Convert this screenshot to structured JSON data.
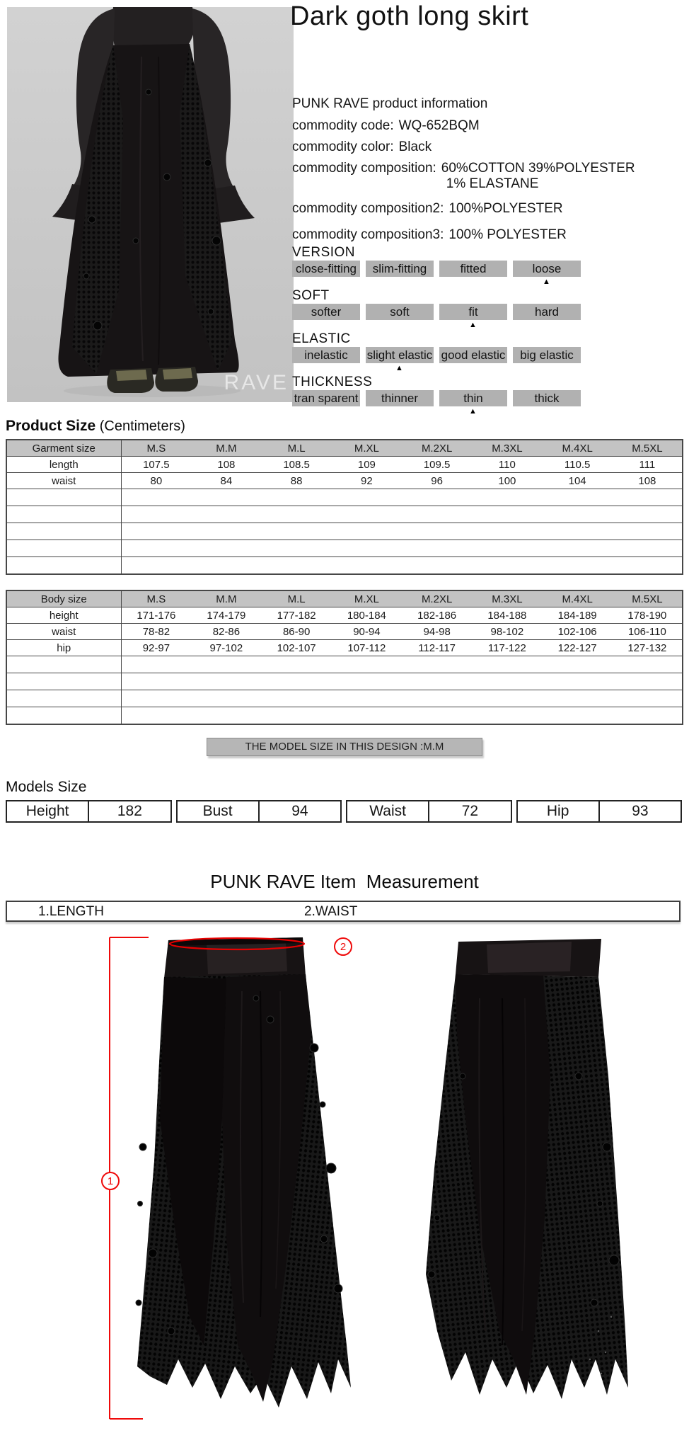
{
  "title": "Dark goth long skirt",
  "photo": {
    "watermark": "RAVE"
  },
  "product_info": {
    "heading": "PUNK RAVE product information",
    "rows": [
      {
        "label": "commodity code:",
        "value": "WQ-652BQM"
      },
      {
        "label": "commodity color:",
        "value": "Black"
      },
      {
        "label": "commodity composition:",
        "value": "60%COTTON  39%POLYESTER",
        "value2": "1% ELASTANE"
      },
      {
        "label": "commodity composition2:",
        "value": "100%POLYESTER"
      },
      {
        "label": "commodity composition3:",
        "value": "100% POLYESTER"
      }
    ]
  },
  "selected_marker": "▲",
  "attributes": [
    {
      "name": "VERSION",
      "options": [
        "close-fitting",
        "slim-fitting",
        "fitted",
        "loose"
      ],
      "selected_index": 3
    },
    {
      "name": "SOFT",
      "options": [
        "softer",
        "soft",
        "fit",
        "hard"
      ],
      "selected_index": 2
    },
    {
      "name": "ELASTIC",
      "options": [
        "inelastic",
        "slight elastic",
        "good elastic",
        "big elastic"
      ],
      "selected_index": 1
    },
    {
      "name": "THICKNESS",
      "options": [
        "tran sparent",
        "thinner",
        "thin",
        "thick"
      ],
      "selected_index": 2
    }
  ],
  "product_size": {
    "heading_bold": "Product Size",
    "heading_note": "(Centimeters)",
    "columns": [
      "Garment size",
      "M.S",
      "M.M",
      "M.L",
      "M.XL",
      "M.2XL",
      "M.3XL",
      "M.4XL",
      "M.5XL"
    ],
    "rows": [
      {
        "label": "length",
        "values": [
          "107.5",
          "108",
          "108.5",
          "109",
          "109.5",
          "110",
          "110.5",
          "111"
        ]
      },
      {
        "label": "waist",
        "values": [
          "80",
          "84",
          "88",
          "92",
          "96",
          "100",
          "104",
          "108"
        ]
      }
    ],
    "empty_rows": 5
  },
  "body_size": {
    "columns": [
      "Body size",
      "M.S",
      "M.M",
      "M.L",
      "M.XL",
      "M.2XL",
      "M.3XL",
      "M.4XL",
      "M.5XL"
    ],
    "rows": [
      {
        "label": "height",
        "values": [
          "171-176",
          "174-179",
          "177-182",
          "180-184",
          "182-186",
          "184-188",
          "184-189",
          "178-190"
        ]
      },
      {
        "label": "waist",
        "values": [
          "78-82",
          "82-86",
          "86-90",
          "90-94",
          "94-98",
          "98-102",
          "102-106",
          "106-110"
        ]
      },
      {
        "label": "hip",
        "values": [
          "92-97",
          "97-102",
          "102-107",
          "107-112",
          "112-117",
          "117-122",
          "122-127",
          "127-132"
        ]
      }
    ],
    "empty_rows": 4
  },
  "model_banner": "THE MODEL SIZE IN THIS DESIGN :M.M",
  "models_size": {
    "heading": "Models Size",
    "items": [
      {
        "label": "Height",
        "value": "182"
      },
      {
        "label": "Bust",
        "value": "94"
      },
      {
        "label": "Waist",
        "value": "72"
      },
      {
        "label": "Hip",
        "value": "93"
      }
    ]
  },
  "measurement": {
    "heading": "PUNK RAVE Item  Measurement",
    "labels": [
      "1.LENGTH",
      "2.WAIST"
    ],
    "annotations": [
      "1",
      "2"
    ]
  }
}
